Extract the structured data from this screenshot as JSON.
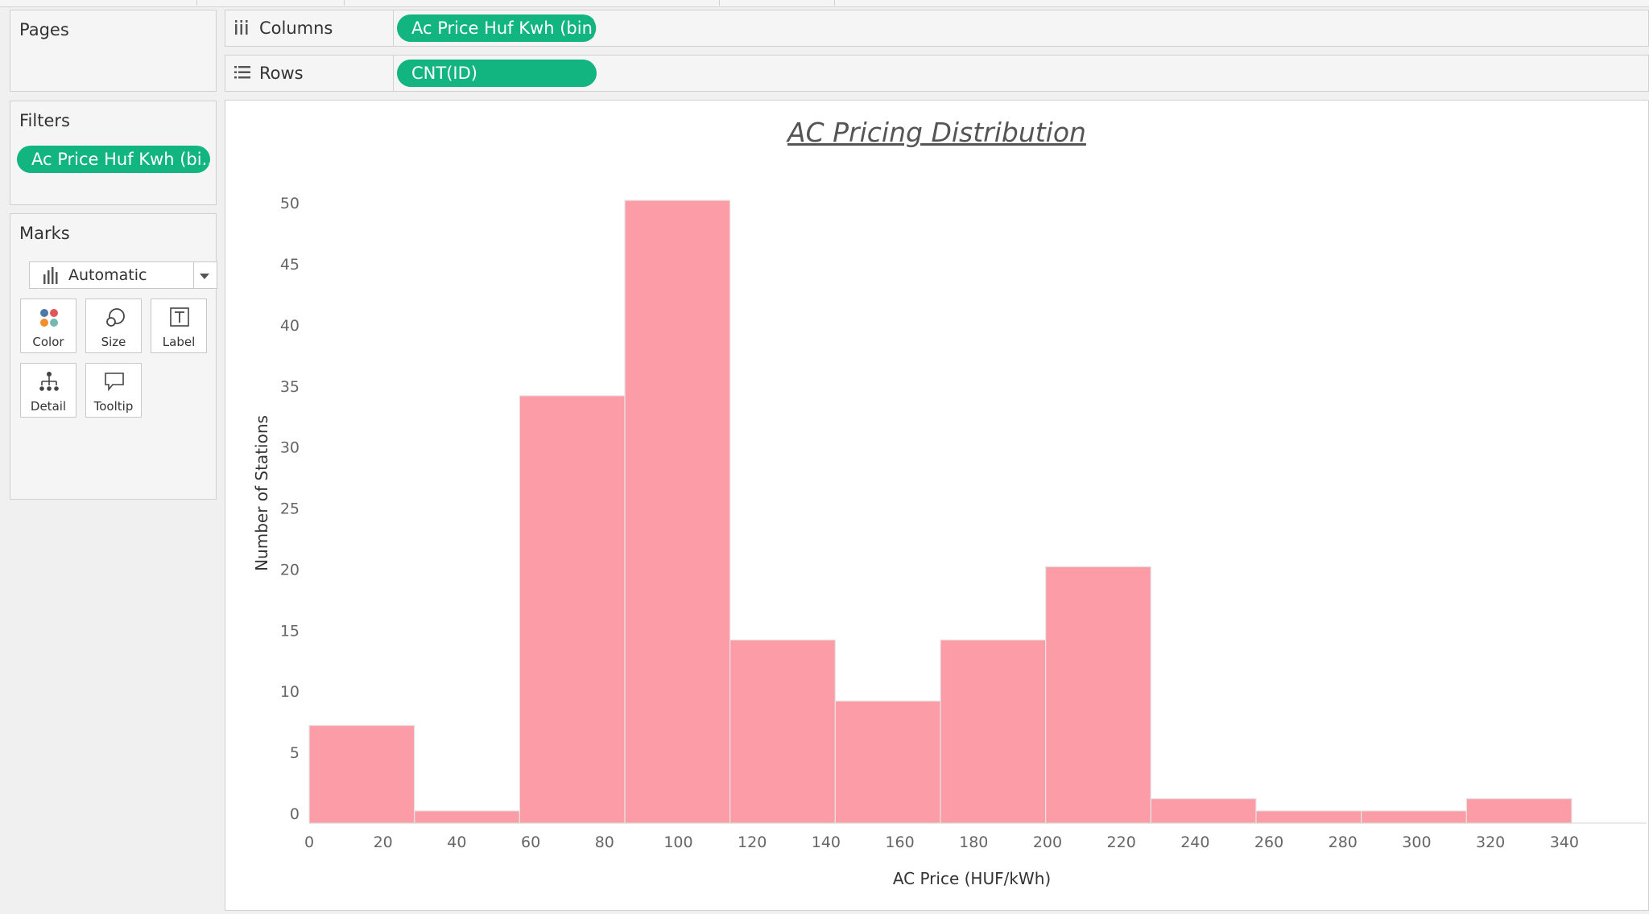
{
  "pages": {
    "title": "Pages"
  },
  "shelves": {
    "columns": {
      "label": "Columns",
      "pill": "Ac Price Huf Kwh (bin)"
    },
    "rows": {
      "label": "Rows",
      "pill": "CNT(ID)"
    }
  },
  "filters": {
    "title": "Filters",
    "pill": "Ac Price Huf Kwh (bi.."
  },
  "marks": {
    "title": "Marks",
    "type": "Automatic",
    "cards": {
      "color": "Color",
      "size": "Size",
      "label": "Label",
      "detail": "Detail",
      "tooltip": "Tooltip"
    }
  },
  "colors": {
    "pill": "#12b47f",
    "bar": "#fc9ca7",
    "bar_edge": "#e5e5e5"
  },
  "chart_data": {
    "type": "bar",
    "title": "AC Pricing Distribution",
    "xlabel": "AC Price (HUF/kWh)",
    "ylabel": "Number of Stations",
    "bins": [
      {
        "start": 0,
        "end": 28.5,
        "count": 8
      },
      {
        "start": 28.5,
        "end": 57,
        "count": 1
      },
      {
        "start": 57,
        "end": 85.5,
        "count": 35
      },
      {
        "start": 85.5,
        "end": 114,
        "count": 51
      },
      {
        "start": 114,
        "end": 142.5,
        "count": 15
      },
      {
        "start": 142.5,
        "end": 171,
        "count": 10
      },
      {
        "start": 171,
        "end": 199.5,
        "count": 15
      },
      {
        "start": 199.5,
        "end": 228,
        "count": 21
      },
      {
        "start": 228,
        "end": 256.5,
        "count": 2
      },
      {
        "start": 256.5,
        "end": 285,
        "count": 1
      },
      {
        "start": 285,
        "end": 313.5,
        "count": 1
      },
      {
        "start": 313.5,
        "end": 342,
        "count": 2
      }
    ],
    "x_ticks": [
      0,
      20,
      40,
      60,
      80,
      100,
      120,
      140,
      160,
      180,
      200,
      220,
      240,
      260,
      280,
      300,
      320,
      340
    ],
    "y_ticks": [
      0,
      5,
      10,
      15,
      20,
      25,
      30,
      35,
      40,
      45,
      50
    ],
    "xlim": [
      0,
      342
    ],
    "ylim": [
      0,
      51
    ],
    "grid": false,
    "legend": "none"
  }
}
